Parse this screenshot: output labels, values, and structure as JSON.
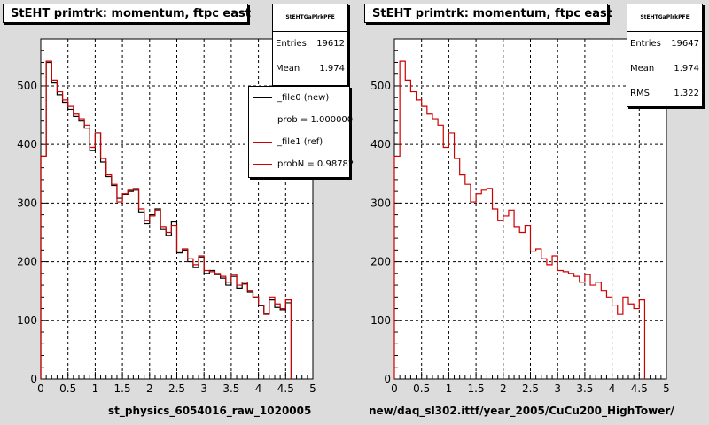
{
  "colors": {
    "new": "#000000",
    "ref": "#cc0000",
    "background": "#dcdcdc"
  },
  "pads": [
    {
      "title": "StEHT primtrk: momentum, ftpc east",
      "stats": {
        "name": "StEHTGaPlrkPFE",
        "entries_label": "Entries",
        "entries": "19612",
        "mean_label": "Mean",
        "mean": "1.974"
      },
      "legend": [
        {
          "label": "_file0 (new)",
          "color": "#000000"
        },
        {
          "label": "prob = 1.000000",
          "color": "#000000"
        },
        {
          "label": "_file1 (ref)",
          "color": "#cc0000"
        },
        {
          "label": "probN = 0.98782",
          "color": "#cc0000"
        }
      ],
      "xlabel": "st_physics_6054016_raw_1020005"
    },
    {
      "title": "StEHT primtrk: momentum, ftpc east",
      "stats": {
        "name": "StEHTGaPlrkPFE",
        "entries_label": "Entries",
        "entries": "19647",
        "mean_label": "Mean",
        "mean": "1.974",
        "rms_label": "RMS",
        "rms": "1.322"
      },
      "xlabel": "new/daq_sl302.ittf/year_2005/CuCu200_HighTower/"
    }
  ],
  "chart_data": [
    {
      "type": "bar",
      "title": "StEHT primtrk: momentum, ftpc east",
      "xlabel": "st_physics_6054016_raw_1020005",
      "ylabel": "",
      "xlim": [
        0,
        5
      ],
      "ylim": [
        0,
        580
      ],
      "grid": true,
      "bin_width": 0.1,
      "x_ticks": [
        "0",
        "0.5",
        "1",
        "1.5",
        "2",
        "2.5",
        "3",
        "3.5",
        "4",
        "4.5",
        "5"
      ],
      "y_ticks": [
        "0",
        "100",
        "200",
        "300",
        "400",
        "500"
      ],
      "legend_position": "top-right",
      "series": [
        {
          "name": "_file0 (new)",
          "color": "#000000",
          "values": [
            380,
            540,
            505,
            485,
            472,
            460,
            448,
            440,
            428,
            390,
            420,
            370,
            345,
            330,
            308,
            315,
            320,
            322,
            285,
            265,
            280,
            290,
            255,
            245,
            268,
            215,
            220,
            200,
            190,
            208,
            180,
            185,
            178,
            172,
            160,
            175,
            155,
            162,
            148,
            140,
            125,
            112,
            135,
            122,
            118,
            130
          ]
        },
        {
          "name": "_file1 (ref)",
          "color": "#cc0000",
          "values": [
            380,
            542,
            510,
            490,
            476,
            465,
            452,
            444,
            433,
            395,
            420,
            376,
            348,
            332,
            302,
            316,
            322,
            325,
            290,
            270,
            278,
            288,
            260,
            250,
            262,
            218,
            222,
            205,
            195,
            210,
            185,
            183,
            180,
            175,
            165,
            178,
            160,
            165,
            150,
            140,
            126,
            110,
            140,
            128,
            120,
            135
          ]
        }
      ]
    },
    {
      "type": "bar",
      "title": "StEHT primtrk: momentum, ftpc east",
      "xlabel": "new/daq_sl302.ittf/year_2005/CuCu200_HighTower/",
      "ylabel": "",
      "xlim": [
        0,
        5
      ],
      "ylim": [
        0,
        580
      ],
      "grid": true,
      "bin_width": 0.1,
      "x_ticks": [
        "0",
        "0.5",
        "1",
        "1.5",
        "2",
        "2.5",
        "3",
        "3.5",
        "4",
        "4.5",
        "5"
      ],
      "y_ticks": [
        "0",
        "100",
        "200",
        "300",
        "400",
        "500"
      ],
      "series": [
        {
          "color": "#cc0000",
          "values": [
            380,
            542,
            510,
            490,
            476,
            465,
            452,
            444,
            433,
            395,
            420,
            376,
            348,
            332,
            302,
            316,
            322,
            325,
            290,
            270,
            278,
            288,
            260,
            250,
            262,
            218,
            222,
            205,
            195,
            210,
            185,
            183,
            180,
            175,
            165,
            178,
            160,
            165,
            150,
            140,
            126,
            110,
            140,
            128,
            120,
            135
          ]
        }
      ]
    }
  ]
}
